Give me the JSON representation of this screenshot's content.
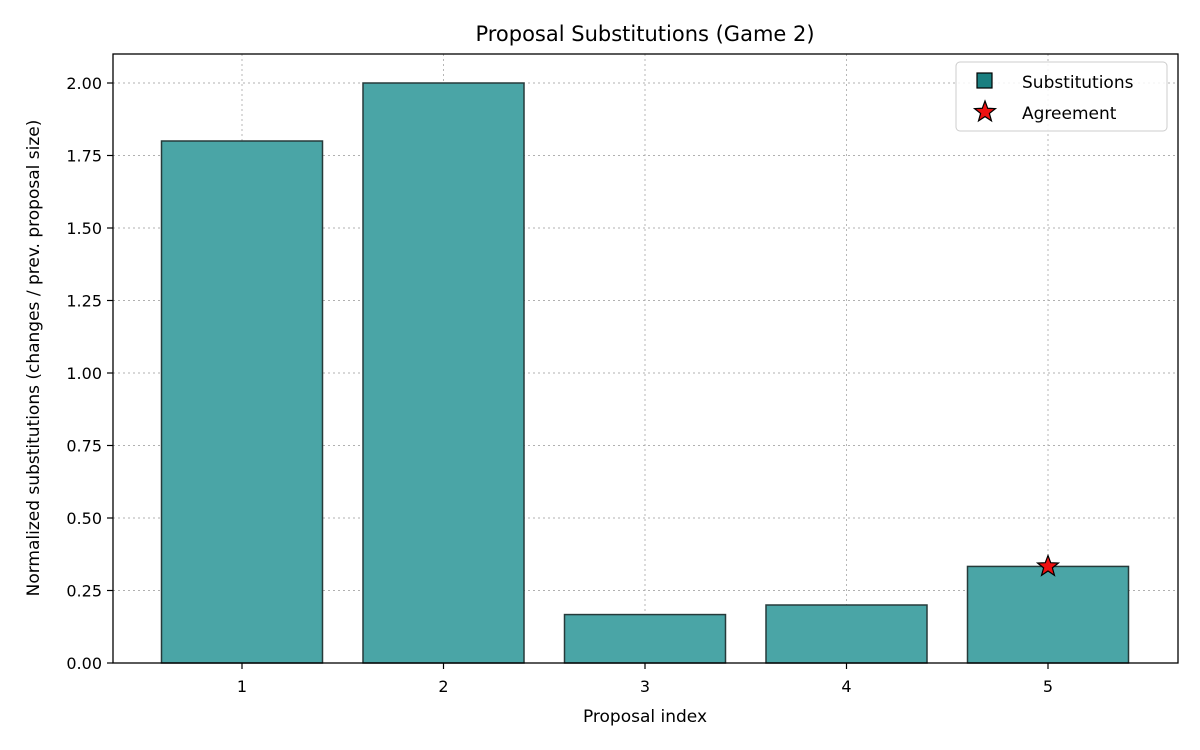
{
  "chart_data": {
    "type": "bar",
    "title": "Proposal Substitutions (Game 2)",
    "xlabel": "Proposal index",
    "ylabel": "Normalized substitutions (changes / prev. proposal size)",
    "categories": [
      "1",
      "2",
      "3",
      "4",
      "5"
    ],
    "series": [
      {
        "name": "Substitutions",
        "values": [
          1.8,
          2.0,
          0.167,
          0.2,
          0.333
        ],
        "color": "#4aa5a6"
      }
    ],
    "markers": [
      {
        "name": "Agreement",
        "category": "5",
        "value": 0.333,
        "color": "#ee1111",
        "shape": "star"
      }
    ],
    "ylim": [
      0,
      2.1
    ],
    "yticks": [
      "0.00",
      "0.25",
      "0.50",
      "0.75",
      "1.00",
      "1.25",
      "1.50",
      "1.75",
      "2.00"
    ],
    "grid": true,
    "legend": {
      "position": "top-right",
      "entries": [
        {
          "label": "Substitutions",
          "marker": "square",
          "color": "#1a7f80"
        },
        {
          "label": "Agreement",
          "marker": "star",
          "color": "#ee1111"
        }
      ]
    }
  }
}
